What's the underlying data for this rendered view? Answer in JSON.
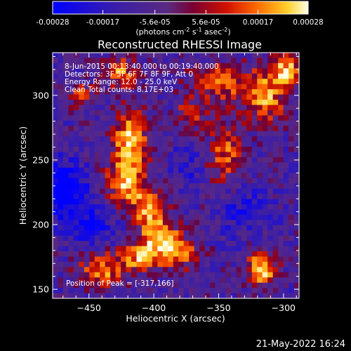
{
  "chart_data": {
    "type": "heatmap",
    "title": "Reconstructed RHESSI Image",
    "xlabel": "Heliocentric X (arcsec)",
    "ylabel": "Heliocentric Y (arcsec)",
    "xlim": [
      -478,
      -288
    ],
    "ylim": [
      143,
      333
    ],
    "x_ticks": [
      -450,
      -400,
      -350,
      -300
    ],
    "y_ticks": [
      150,
      200,
      250,
      300
    ],
    "colorbar": {
      "ticks": [
        -0.00028,
        -0.00017,
        -5.6e-05,
        5.6e-05,
        0.00017,
        0.00028
      ],
      "tick_labels": [
        "-0.00028",
        "-0.00017",
        "-5.6e-05",
        "5.6e-05",
        "0.00017",
        "0.00028"
      ],
      "unit_label": "(photons cm",
      "unit_exp1": "-2",
      "unit_mid": " s",
      "unit_exp2": "-1",
      "unit_mid2": " asec",
      "unit_exp3": "-2",
      "unit_end": ")",
      "range": [
        -0.00028,
        0.00028
      ]
    },
    "annotations": [
      "8-Jun-2015 00:13:40.000 to 00:19:40.000",
      "Detectors: 3F 5F 6F 7F 8F 9F, Att 0",
      "Energy Range: 12.0 - 25.0 keV",
      "Clean     Total counts: 8.17E+03"
    ],
    "peak_label": "Position of Peak = [-317,166]",
    "peak": [
      -317,
      166
    ],
    "sources": [
      {
        "x": -418,
        "y": 265,
        "sx": 9,
        "sy": 16,
        "amp": 1.0
      },
      {
        "x": -422,
        "y": 232,
        "sx": 10,
        "sy": 12,
        "amp": 0.85
      },
      {
        "x": -403,
        "y": 212,
        "sx": 9,
        "sy": 11,
        "amp": 0.9
      },
      {
        "x": -395,
        "y": 190,
        "sx": 10,
        "sy": 9,
        "amp": 0.85
      },
      {
        "x": -410,
        "y": 175,
        "sx": 11,
        "sy": 8,
        "amp": 0.8
      },
      {
        "x": -440,
        "y": 165,
        "sx": 12,
        "sy": 9,
        "amp": 0.75
      },
      {
        "x": -380,
        "y": 178,
        "sx": 10,
        "sy": 8,
        "amp": 0.8
      },
      {
        "x": -317,
        "y": 166,
        "sx": 8,
        "sy": 9,
        "amp": 1.0
      },
      {
        "x": -345,
        "y": 255,
        "sx": 10,
        "sy": 16,
        "amp": 0.6
      },
      {
        "x": -315,
        "y": 300,
        "sx": 12,
        "sy": 14,
        "amp": 0.8
      },
      {
        "x": -298,
        "y": 320,
        "sx": 7,
        "sy": 9,
        "amp": 0.85
      },
      {
        "x": -350,
        "y": 310,
        "sx": 15,
        "sy": 10,
        "amp": 0.65
      },
      {
        "x": -425,
        "y": 318,
        "sx": 9,
        "sy": 8,
        "amp": 0.7
      },
      {
        "x": -455,
        "y": 300,
        "sx": 7,
        "sy": 7,
        "amp": 0.5
      },
      {
        "x": -372,
        "y": 285,
        "sx": 8,
        "sy": 8,
        "amp": 0.5
      }
    ],
    "negative_regions": [
      {
        "x": -470,
        "y": 228,
        "sx": 12,
        "sy": 14,
        "amp": -0.85
      },
      {
        "x": -448,
        "y": 200,
        "sx": 14,
        "sy": 12,
        "amp": -0.4
      },
      {
        "x": -330,
        "y": 210,
        "sx": 14,
        "sy": 14,
        "amp": -0.35
      },
      {
        "x": -375,
        "y": 245,
        "sx": 9,
        "sy": 12,
        "amp": -0.3
      }
    ]
  },
  "footer": {
    "timestamp": "21-May-2022 16:24"
  }
}
